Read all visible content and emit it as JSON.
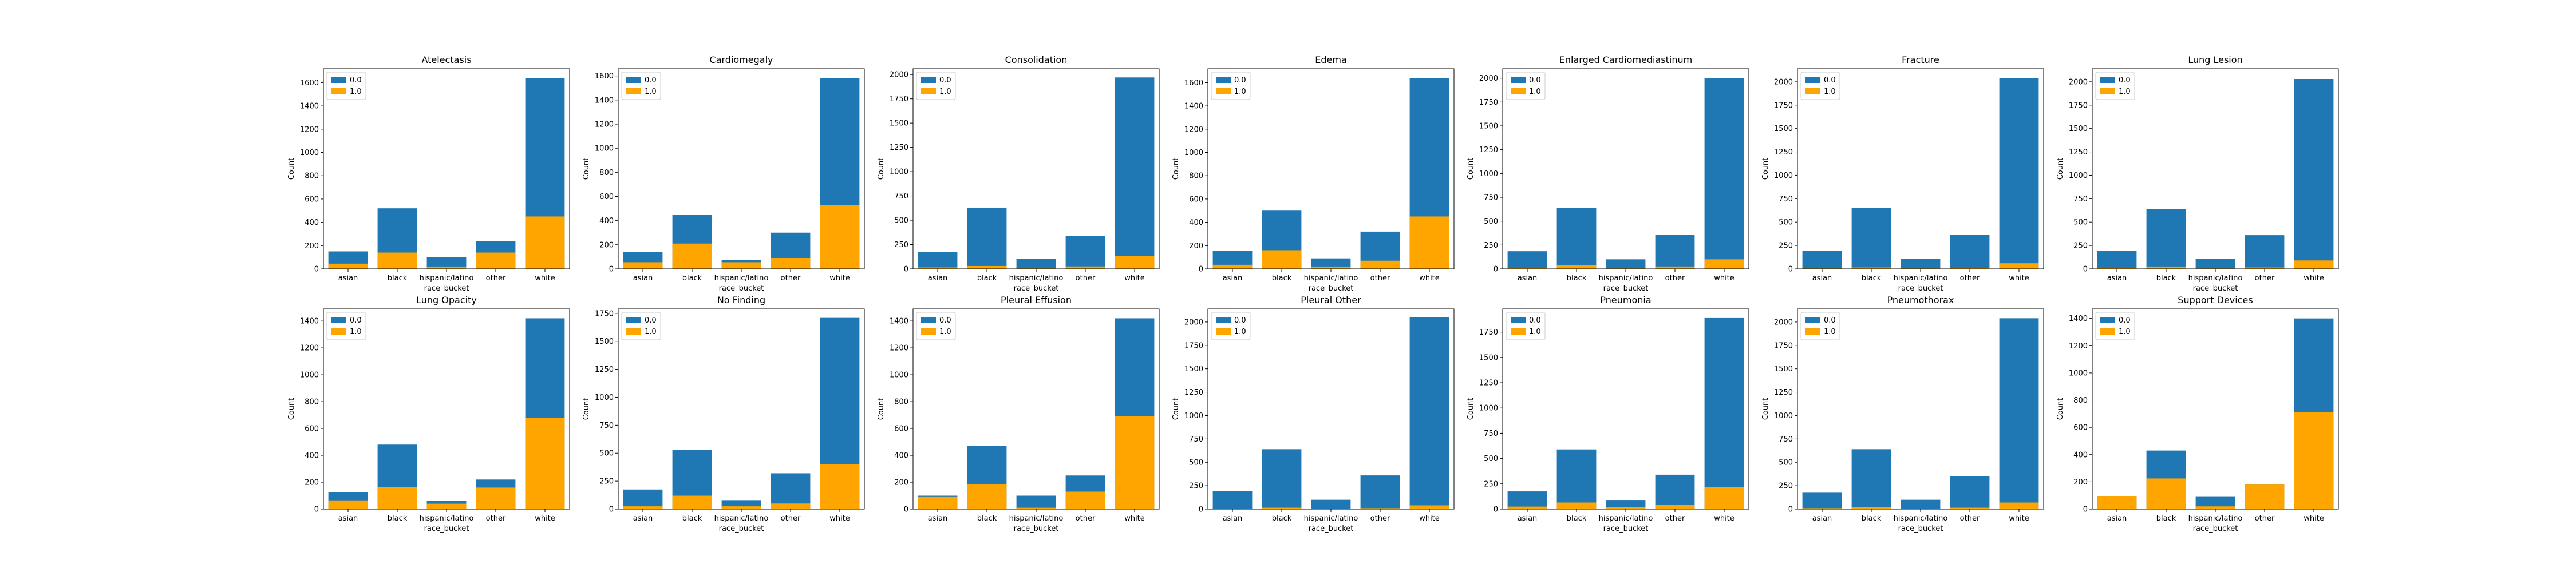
{
  "colors": {
    "series0": "#1f77b4",
    "series1": "#ffa500"
  },
  "chart_data": [
    {
      "type": "bar",
      "stacked": "overlay",
      "title": "Atelectasis",
      "xlabel": "",
      "ylabel": "Count",
      "categories": [
        "asian",
        "black",
        "hispanic/latino",
        "other",
        "white"
      ],
      "ylim": [
        0,
        1720
      ],
      "yticks": [
        0,
        200,
        400,
        600,
        800,
        1000,
        1200,
        1400,
        1600
      ],
      "legend": "top-left",
      "series": [
        {
          "name": "0.0",
          "values": [
            150,
            520,
            100,
            240,
            1640
          ]
        },
        {
          "name": "1.0",
          "values": [
            45,
            140,
            20,
            140,
            450
          ]
        }
      ]
    },
    {
      "type": "bar",
      "stacked": "overlay",
      "title": "Cardiomegaly",
      "xlabel": "",
      "ylabel": "Count",
      "categories": [
        "asian",
        "black",
        "hispanic/latino",
        "other",
        "white"
      ],
      "ylim": [
        0,
        1660
      ],
      "yticks": [
        0,
        200,
        400,
        600,
        800,
        1000,
        1200,
        1400,
        1600
      ],
      "legend": "top-left",
      "series": [
        {
          "name": "0.0",
          "values": [
            140,
            450,
            75,
            300,
            1580
          ]
        },
        {
          "name": "1.0",
          "values": [
            55,
            210,
            55,
            90,
            530
          ]
        }
      ]
    },
    {
      "type": "bar",
      "stacked": "overlay",
      "title": "Consolidation",
      "xlabel": "",
      "ylabel": "Count",
      "categories": [
        "asian",
        "black",
        "hispanic/latino",
        "other",
        "white"
      ],
      "ylim": [
        0,
        2060
      ],
      "yticks": [
        0,
        250,
        500,
        750,
        1000,
        1250,
        1500,
        1750,
        2000
      ],
      "legend": "top-left",
      "series": [
        {
          "name": "0.0",
          "values": [
            175,
            630,
            100,
            340,
            1970
          ]
        },
        {
          "name": "1.0",
          "values": [
            15,
            30,
            5,
            25,
            130
          ]
        }
      ]
    },
    {
      "type": "bar",
      "stacked": "overlay",
      "title": "Edema",
      "xlabel": "",
      "ylabel": "Count",
      "categories": [
        "asian",
        "black",
        "hispanic/latino",
        "other",
        "white"
      ],
      "ylim": [
        0,
        1720
      ],
      "yticks": [
        0,
        200,
        400,
        600,
        800,
        1000,
        1200,
        1400,
        1600
      ],
      "legend": "top-left",
      "series": [
        {
          "name": "0.0",
          "values": [
            155,
            500,
            90,
            320,
            1640
          ]
        },
        {
          "name": "1.0",
          "values": [
            35,
            160,
            20,
            70,
            450
          ]
        }
      ]
    },
    {
      "type": "bar",
      "stacked": "overlay",
      "title": "Enlarged Cardiomediastinum",
      "xlabel": "",
      "ylabel": "Count",
      "categories": [
        "asian",
        "black",
        "hispanic/latino",
        "other",
        "white"
      ],
      "ylim": [
        0,
        2100
      ],
      "yticks": [
        0,
        250,
        500,
        750,
        1000,
        1250,
        1500,
        1750,
        2000
      ],
      "legend": "top-left",
      "series": [
        {
          "name": "0.0",
          "values": [
            185,
            640,
            100,
            360,
            2000
          ]
        },
        {
          "name": "1.0",
          "values": [
            10,
            40,
            5,
            25,
            100
          ]
        }
      ]
    },
    {
      "type": "bar",
      "stacked": "overlay",
      "title": "Fracture",
      "xlabel": "",
      "ylabel": "Count",
      "categories": [
        "asian",
        "black",
        "hispanic/latino",
        "other",
        "white"
      ],
      "ylim": [
        0,
        2140
      ],
      "yticks": [
        0,
        250,
        500,
        750,
        1000,
        1250,
        1500,
        1750,
        2000
      ],
      "legend": "top-left",
      "series": [
        {
          "name": "0.0",
          "values": [
            195,
            650,
            105,
            365,
            2040
          ]
        },
        {
          "name": "1.0",
          "values": [
            5,
            15,
            5,
            10,
            60
          ]
        }
      ]
    },
    {
      "type": "bar",
      "stacked": "overlay",
      "title": "Lung Lesion",
      "xlabel": "",
      "ylabel": "Count",
      "categories": [
        "asian",
        "black",
        "hispanic/latino",
        "other",
        "white"
      ],
      "ylim": [
        0,
        2140
      ],
      "yticks": [
        0,
        250,
        500,
        750,
        1000,
        1250,
        1500,
        1750,
        2000
      ],
      "legend": "top-left",
      "series": [
        {
          "name": "0.0",
          "values": [
            195,
            640,
            105,
            360,
            2030
          ]
        },
        {
          "name": "1.0",
          "values": [
            10,
            25,
            5,
            15,
            90
          ]
        }
      ]
    },
    {
      "type": "bar",
      "stacked": "overlay",
      "title": "Lung Opacity",
      "xlabel": "",
      "ylabel": "Count",
      "categories": [
        "asian",
        "black",
        "hispanic/latino",
        "other",
        "white"
      ],
      "ylim": [
        0,
        1490
      ],
      "yticks": [
        0,
        200,
        400,
        600,
        800,
        1000,
        1200,
        1400
      ],
      "legend": "top-left",
      "series": [
        {
          "name": "0.0",
          "values": [
            125,
            480,
            60,
            220,
            1420
          ]
        },
        {
          "name": "1.0",
          "values": [
            65,
            165,
            40,
            160,
            680
          ]
        }
      ]
    },
    {
      "type": "bar",
      "stacked": "overlay",
      "title": "No Finding",
      "xlabel": "",
      "ylabel": "Count",
      "categories": [
        "asian",
        "black",
        "hispanic/latino",
        "other",
        "white"
      ],
      "ylim": [
        0,
        1790
      ],
      "yticks": [
        0,
        250,
        500,
        750,
        1000,
        1250,
        1500,
        1750
      ],
      "legend": "top-left",
      "series": [
        {
          "name": "0.0",
          "values": [
            175,
            530,
            80,
            320,
            1710
          ]
        },
        {
          "name": "1.0",
          "values": [
            25,
            120,
            25,
            50,
            400
          ]
        }
      ]
    },
    {
      "type": "bar",
      "stacked": "overlay",
      "title": "Pleural Effusion",
      "xlabel": "",
      "ylabel": "Count",
      "categories": [
        "asian",
        "black",
        "hispanic/latino",
        "other",
        "white"
      ],
      "ylim": [
        0,
        1490
      ],
      "yticks": [
        0,
        200,
        400,
        600,
        800,
        1000,
        1200,
        1400
      ],
      "legend": "top-left",
      "series": [
        {
          "name": "0.0",
          "values": [
            100,
            470,
            100,
            250,
            1420
          ]
        },
        {
          "name": "1.0",
          "values": [
            90,
            185,
            10,
            130,
            690
          ]
        }
      ]
    },
    {
      "type": "bar",
      "stacked": "overlay",
      "title": "Pleural Other",
      "xlabel": "",
      "ylabel": "Count",
      "categories": [
        "asian",
        "black",
        "hispanic/latino",
        "other",
        "white"
      ],
      "ylim": [
        0,
        2140
      ],
      "yticks": [
        0,
        250,
        500,
        750,
        1000,
        1250,
        1500,
        1750,
        2000
      ],
      "legend": "top-left",
      "series": [
        {
          "name": "0.0",
          "values": [
            190,
            640,
            100,
            360,
            2050
          ]
        },
        {
          "name": "1.0",
          "values": [
            5,
            15,
            3,
            10,
            40
          ]
        }
      ]
    },
    {
      "type": "bar",
      "stacked": "overlay",
      "title": "Pneumonia",
      "xlabel": "",
      "ylabel": "Count",
      "categories": [
        "asian",
        "black",
        "hispanic/latino",
        "other",
        "white"
      ],
      "ylim": [
        0,
        1980
      ],
      "yticks": [
        0,
        250,
        500,
        750,
        1000,
        1250,
        1500,
        1750
      ],
      "legend": "top-left",
      "series": [
        {
          "name": "0.0",
          "values": [
            175,
            590,
            90,
            340,
            1890
          ]
        },
        {
          "name": "1.0",
          "values": [
            25,
            65,
            20,
            40,
            220
          ]
        }
      ]
    },
    {
      "type": "bar",
      "stacked": "overlay",
      "title": "Pneumothorax",
      "xlabel": "",
      "ylabel": "Count",
      "categories": [
        "asian",
        "black",
        "hispanic/latino",
        "other",
        "white"
      ],
      "ylim": [
        0,
        2140
      ],
      "yticks": [
        0,
        250,
        500,
        750,
        1000,
        1250,
        1500,
        1750,
        2000
      ],
      "legend": "top-left",
      "series": [
        {
          "name": "0.0",
          "values": [
            175,
            640,
            100,
            350,
            2040
          ]
        },
        {
          "name": "1.0",
          "values": [
            10,
            20,
            5,
            15,
            70
          ]
        }
      ]
    },
    {
      "type": "bar",
      "stacked": "overlay",
      "title": "Support Devices",
      "xlabel": "",
      "ylabel": "Count",
      "categories": [
        "asian",
        "black",
        "hispanic/latino",
        "other",
        "white"
      ],
      "ylim": [
        0,
        1470
      ],
      "yticks": [
        0,
        200,
        400,
        600,
        800,
        1000,
        1200,
        1400
      ],
      "legend": "top-left",
      "series": [
        {
          "name": "0.0",
          "values": [
            95,
            430,
            90,
            180,
            1400
          ]
        },
        {
          "name": "1.0",
          "values": [
            95,
            225,
            20,
            180,
            710
          ]
        }
      ]
    }
  ],
  "shared_xlabel": "race_bucket"
}
